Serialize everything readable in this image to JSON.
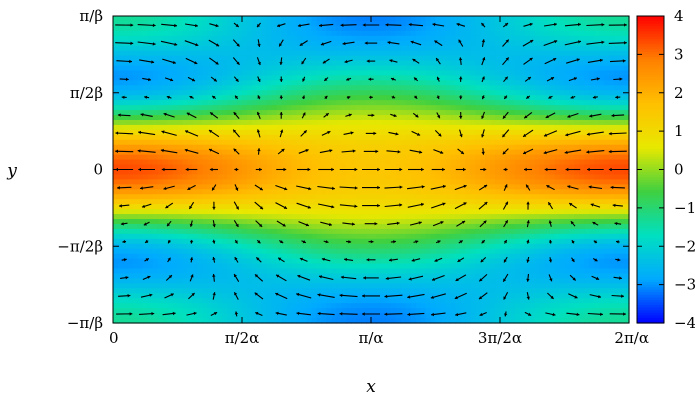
{
  "chart_data": {
    "type": "heatmap",
    "title": "",
    "xlabel": "x",
    "ylabel": "y",
    "x_ticks": [
      "0",
      "π/2α",
      "π/α",
      "3π/2α",
      "2π/α"
    ],
    "x_tick_values": [
      0,
      0.25,
      0.5,
      0.75,
      1
    ],
    "y_ticks": [
      "π/β",
      "π/2β",
      "0",
      "−π/2β",
      "−π/β"
    ],
    "y_tick_values": [
      1,
      0.5,
      0,
      -0.5,
      -1
    ],
    "xlim": [
      0,
      1
    ],
    "ylim": [
      -1,
      1
    ],
    "x_unit": "2π/α",
    "y_unit": "π/β",
    "colorbar": {
      "range": [
        -4,
        4
      ],
      "ticks": [
        "4",
        "3",
        "2",
        "1",
        "0",
        "−1",
        "−2",
        "−3",
        "−4"
      ],
      "tick_values": [
        4,
        3,
        2,
        1,
        0,
        -1,
        -2,
        -3,
        -4
      ],
      "colormap": [
        "#0000ff",
        "#00aaff",
        "#00e0c0",
        "#40d040",
        "#e8e800",
        "#ffc000",
        "#ff8000",
        "#ff0000"
      ]
    },
    "field": {
      "description": "scalar field with overlaid vector arrows",
      "formula_scalar": "3.2*cos(pi*y) + 0.6*cos(2*pi*y)*cos(2*pi*x) - 0.4",
      "grid_nx": 23,
      "grid_ny": 17
    }
  }
}
